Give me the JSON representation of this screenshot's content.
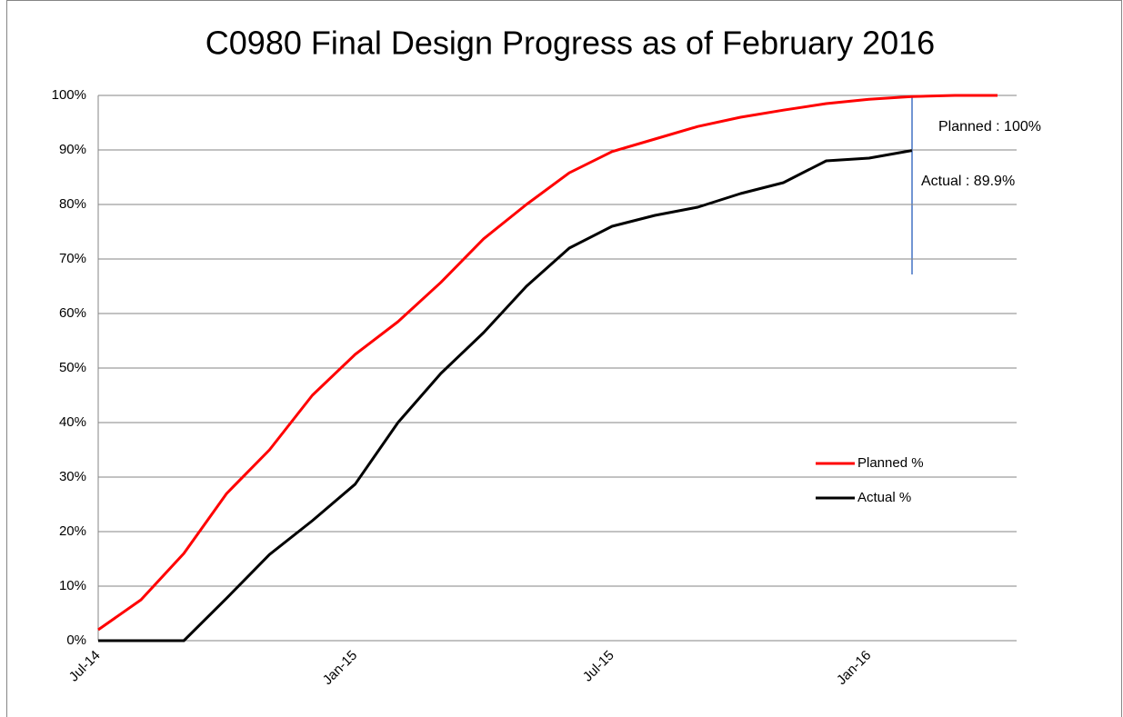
{
  "chart_data": {
    "type": "line",
    "title": "C0980 Final Design Progress as of February 2016",
    "categories": [
      "Jul-14",
      null,
      null,
      null,
      null,
      null,
      "Jan-15",
      null,
      null,
      null,
      null,
      null,
      "Jul-15",
      null,
      null,
      null,
      null,
      null,
      "Jan-16",
      null,
      null,
      null
    ],
    "series": [
      {
        "name": "Planned %",
        "color": "#ff0000",
        "values": [
          2,
          7.5,
          16,
          27,
          35,
          45,
          52.5,
          58.5,
          65.7,
          73.7,
          80,
          85.8,
          89.7,
          92,
          94.3,
          96,
          97.3,
          98.5,
          99.3,
          99.8,
          100,
          100
        ]
      },
      {
        "name": "Actual %",
        "color": "#000000",
        "values": [
          0,
          0,
          0,
          7.8,
          15.8,
          22,
          28.7,
          40,
          49,
          56.5,
          65,
          72,
          76,
          78,
          79.5,
          82,
          84,
          88,
          88.5,
          89.9,
          null,
          null
        ]
      }
    ],
    "ylim": [
      0,
      100
    ],
    "yticks": [
      {
        "value": 0,
        "label": "0%"
      },
      {
        "value": 10,
        "label": "10%"
      },
      {
        "value": 20,
        "label": "20%"
      },
      {
        "value": 30,
        "label": "30%"
      },
      {
        "value": 40,
        "label": "40%"
      },
      {
        "value": 50,
        "label": "50%"
      },
      {
        "value": 60,
        "label": "60%"
      },
      {
        "value": 70,
        "label": "70%"
      },
      {
        "value": 80,
        "label": "80%"
      },
      {
        "value": 90,
        "label": "90%"
      },
      {
        "value": 100,
        "label": "100%"
      }
    ],
    "grid": true,
    "annotations": [
      "Planned : 100%",
      "Actual : 89.9%"
    ]
  }
}
